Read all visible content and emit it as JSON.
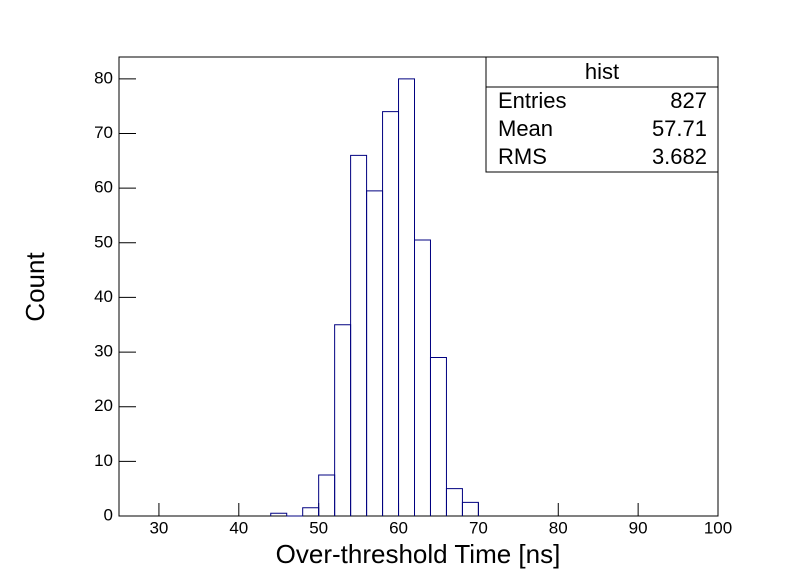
{
  "chart_data": {
    "type": "histogram",
    "xlabel": "Over-threshold Time [ns]",
    "ylabel": "Count",
    "bins": [
      44,
      46,
      48,
      50,
      52,
      54,
      56,
      58,
      60,
      62,
      64,
      66,
      68,
      70
    ],
    "values": [
      0.5,
      0,
      1.5,
      7.5,
      35,
      66,
      59.5,
      74,
      80,
      50.5,
      29,
      5,
      2.5
    ],
    "color": "#000080",
    "xlim": [
      25,
      100
    ],
    "xticks": [
      30,
      40,
      50,
      60,
      70,
      80,
      90,
      100
    ],
    "ylim": [
      0,
      84
    ],
    "yticks": [
      0,
      10,
      20,
      30,
      40,
      50,
      60,
      70,
      80
    ],
    "stats": {
      "title": "hist",
      "rows": [
        {
          "label": "Entries",
          "value": 827
        },
        {
          "label": "Mean",
          "value": 57.71
        },
        {
          "label": "RMS",
          "value": 3.682
        }
      ]
    }
  }
}
